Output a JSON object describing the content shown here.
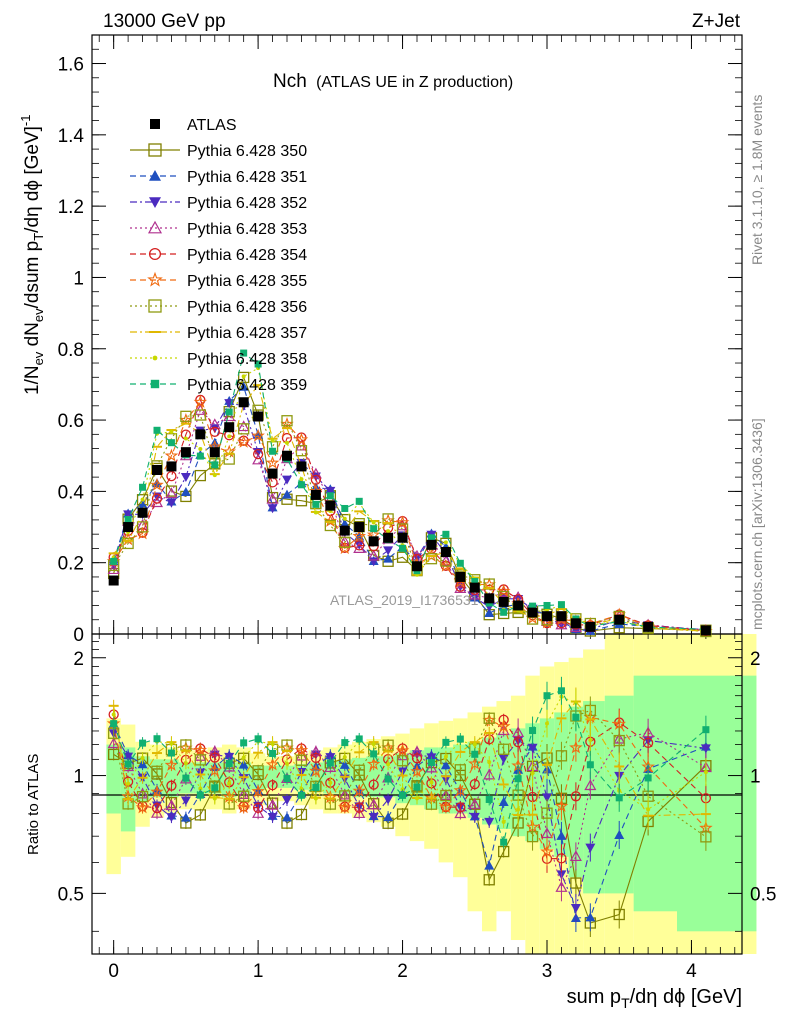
{
  "header": {
    "left": "13000 GeV pp",
    "right": "Z+Jet"
  },
  "side_labels": {
    "rivet": "Rivet 3.1.10, ≥ 1.8M events",
    "mcplots": "mcplots.cern.ch [arXiv:1306.3436]"
  },
  "watermark": "ATLAS_2019_I1736531",
  "chart_data": [
    {
      "type": "scatter",
      "title": "Nch",
      "subtitle": "(ATLAS UE in Z production)",
      "ylabel": "1/N_ev dN_ev/dsum p_T/dη dϕ [GeV]^-1",
      "xlim": [
        -0.15,
        4.35
      ],
      "ylim": [
        0,
        1.68
      ],
      "yticks": [
        0,
        0.2,
        0.4,
        0.6,
        0.8,
        1,
        1.2,
        1.4,
        1.6
      ],
      "ytick_labels": [
        "0",
        "0.2",
        "0.4",
        "0.6",
        "0.8",
        "1",
        "1.2",
        "1.4",
        "1.6"
      ],
      "legend_placement": "top-left",
      "x": [
        0.0,
        0.1,
        0.2,
        0.3,
        0.4,
        0.5,
        0.6,
        0.7,
        0.8,
        0.9,
        1.0,
        1.1,
        1.2,
        1.3,
        1.4,
        1.5,
        1.6,
        1.7,
        1.8,
        1.9,
        2.0,
        2.1,
        2.2,
        2.3,
        2.4,
        2.5,
        2.6,
        2.7,
        2.8,
        2.9,
        3.0,
        3.1,
        3.2,
        3.3,
        3.5,
        3.7,
        4.1
      ],
      "atlas": {
        "name": "ATLAS",
        "values": [
          0.15,
          0.3,
          0.34,
          0.46,
          0.47,
          0.51,
          0.56,
          0.51,
          0.58,
          0.65,
          0.61,
          0.45,
          0.5,
          0.47,
          0.39,
          0.36,
          0.29,
          0.3,
          0.26,
          0.27,
          0.27,
          0.19,
          0.25,
          0.23,
          0.16,
          0.13,
          0.1,
          0.09,
          0.08,
          0.06,
          0.05,
          0.05,
          0.03,
          0.02,
          0.04,
          0.02,
          0.01
        ]
      },
      "series": [
        {
          "name": "Pythia 6.428 350",
          "color": "#808000",
          "marker": "square-open",
          "dash": "solid"
        },
        {
          "name": "Pythia 6.428 351",
          "color": "#1f4fbf",
          "marker": "triangle-up",
          "dash": "dashed"
        },
        {
          "name": "Pythia 6.428 352",
          "color": "#4b2bbf",
          "marker": "triangle-down",
          "dash": "dashdot"
        },
        {
          "name": "Pythia 6.428 353",
          "color": "#b0308f",
          "marker": "triangle-up-open",
          "dash": "dotted"
        },
        {
          "name": "Pythia 6.428 354",
          "color": "#d42020",
          "marker": "circle-open",
          "dash": "dashed"
        },
        {
          "name": "Pythia 6.428 355",
          "color": "#f06a10",
          "marker": "star-open",
          "dash": "dashed"
        },
        {
          "name": "Pythia 6.428 356",
          "color": "#8f9a10",
          "marker": "square-open",
          "dash": "dotted"
        },
        {
          "name": "Pythia 6.428 357",
          "color": "#e0b800",
          "marker": "tick",
          "dash": "dashdot"
        },
        {
          "name": "Pythia 6.428 358",
          "color": "#c8d800",
          "marker": "dot",
          "dash": "dotted"
        },
        {
          "name": "Pythia 6.428 359",
          "color": "#10b070",
          "marker": "square",
          "dash": "dashed"
        }
      ]
    },
    {
      "type": "scatter",
      "ylabel": "Ratio to ATLAS",
      "xlabel": "sum p_T/dη dϕ [GeV]",
      "xlim": [
        -0.15,
        4.35
      ],
      "ylim": [
        0.35,
        2.3
      ],
      "ylog": true,
      "yticks": [
        0.5,
        1,
        2
      ],
      "ytick_labels": [
        "0.5",
        "1",
        "2"
      ],
      "xticks": [
        0,
        1,
        2,
        3,
        4
      ],
      "xtick_labels": [
        "0",
        "1",
        "2",
        "3",
        "4"
      ],
      "uncertainty_band_1": {
        "color": "#99ff99",
        "lo": [
          0.8,
          0.72,
          0.86,
          0.88,
          0.88,
          0.9,
          0.9,
          0.9,
          0.88,
          0.9,
          0.92,
          0.93,
          0.93,
          0.92,
          0.91,
          0.9,
          0.9,
          0.88,
          0.88,
          0.88,
          0.85,
          0.84,
          0.82,
          0.8,
          0.8,
          0.78,
          0.75,
          0.73,
          0.7,
          0.68,
          0.65,
          0.62,
          0.55,
          0.5,
          0.5,
          0.45,
          0.4
        ],
        "hi": [
          1.2,
          1.18,
          1.12,
          1.1,
          1.1,
          1.08,
          1.08,
          1.08,
          1.08,
          1.08,
          1.06,
          1.06,
          1.06,
          1.07,
          1.08,
          1.09,
          1.1,
          1.11,
          1.12,
          1.12,
          1.14,
          1.16,
          1.18,
          1.18,
          1.2,
          1.22,
          1.25,
          1.28,
          1.32,
          1.36,
          1.4,
          1.45,
          1.5,
          1.55,
          1.6,
          1.8,
          1.8
        ]
      },
      "uncertainty_band_2": {
        "color": "#ffff99",
        "lo": [
          0.56,
          0.62,
          0.74,
          0.78,
          0.8,
          0.82,
          0.82,
          0.82,
          0.8,
          0.82,
          0.84,
          0.86,
          0.86,
          0.84,
          0.82,
          0.8,
          0.8,
          0.78,
          0.76,
          0.74,
          0.7,
          0.68,
          0.65,
          0.6,
          0.55,
          0.45,
          0.4,
          0.45,
          0.38,
          0.35,
          0.35,
          0.35,
          0.35,
          0.35,
          0.35,
          0.35,
          0.35
        ],
        "hi": [
          1.4,
          1.35,
          1.22,
          1.2,
          1.18,
          1.16,
          1.16,
          1.18,
          1.2,
          1.18,
          1.14,
          1.12,
          1.12,
          1.14,
          1.16,
          1.18,
          1.2,
          1.22,
          1.24,
          1.26,
          1.28,
          1.32,
          1.36,
          1.38,
          1.4,
          1.45,
          1.5,
          1.55,
          1.6,
          1.8,
          1.9,
          1.95,
          2.0,
          2.1,
          2.3,
          2.3,
          2.3
        ]
      }
    }
  ]
}
